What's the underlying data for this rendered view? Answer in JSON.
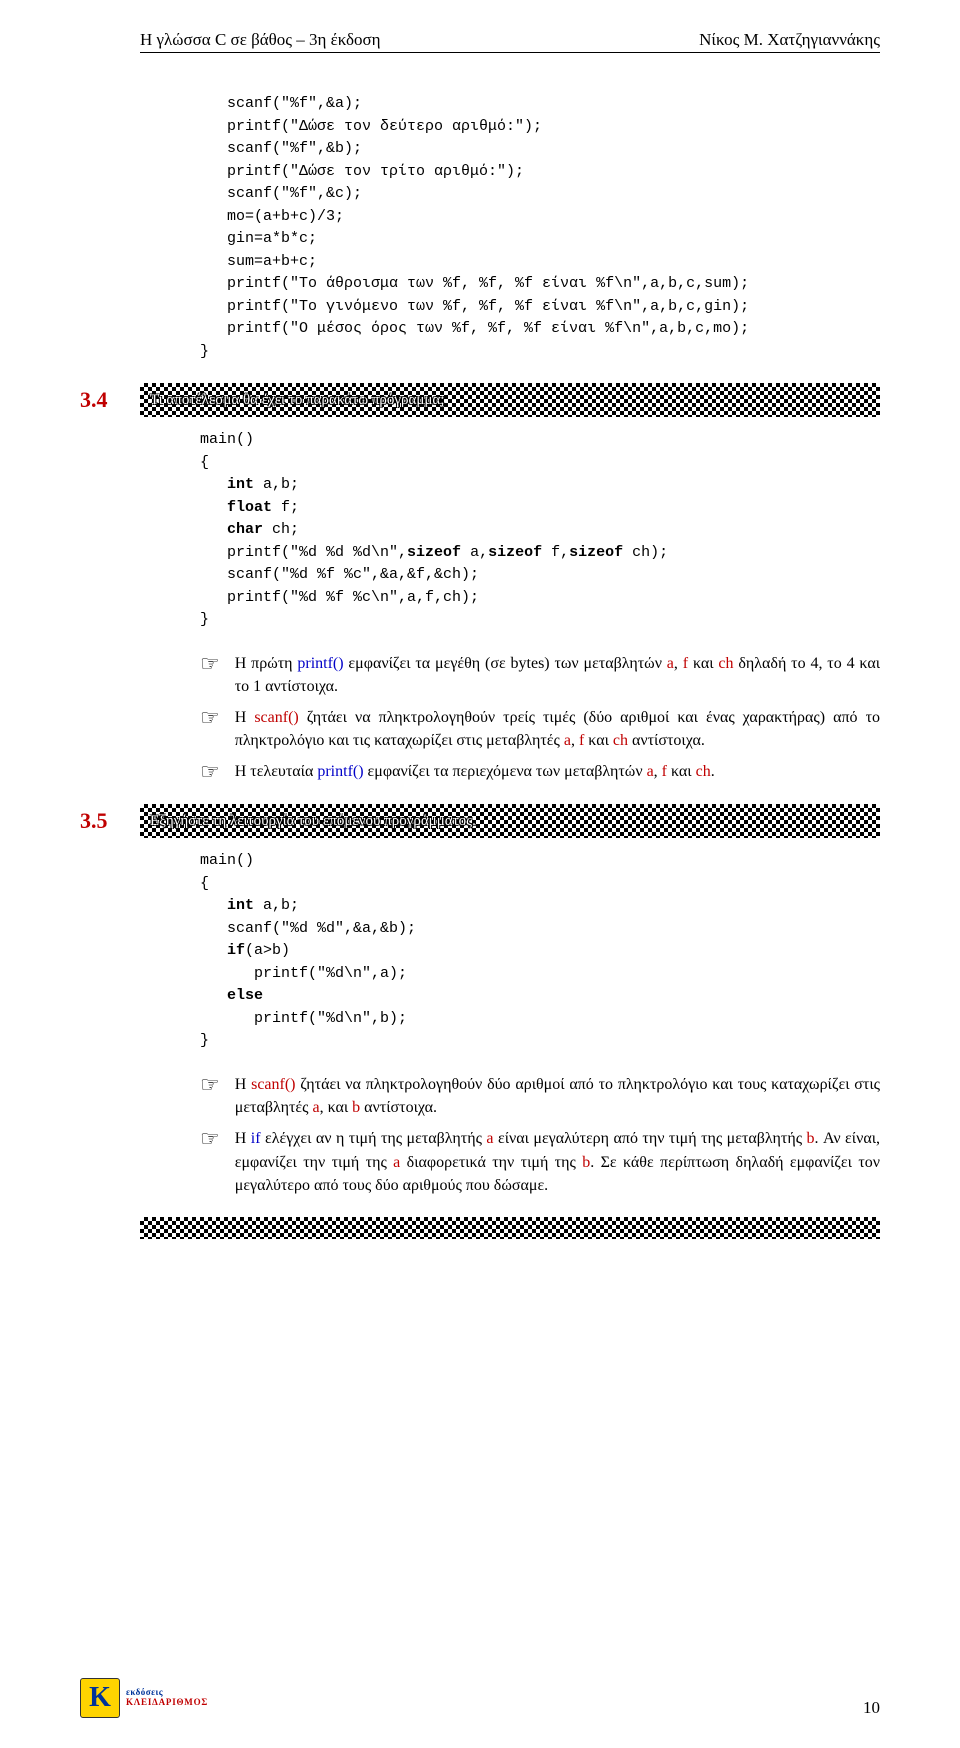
{
  "header": {
    "left": "Η γλώσσα C σε βάθος – 3η έκδοση",
    "right": "Νίκος Μ. Χατζηγιαννάκης"
  },
  "code1": {
    "lines": [
      "scanf(\"%f\",&a);",
      "printf(\"Δώσε τον δεύτερο αριθμό:\");",
      "scanf(\"%f\",&b);",
      "printf(\"Δώσε τον τρίτο αριθμό:\");",
      "scanf(\"%f\",&c);",
      "mo=(a+b+c)/3;",
      "gin=a*b*c;",
      "sum=a+b+c;",
      "printf(\"Το άθροισμα των %f, %f, %f είναι %f\\n\",a,b,c,sum);",
      "printf(\"Το γινόμενο των %f, %f, %f είναι %f\\n\",a,b,c,gin);",
      "printf(\"Ο μέσος όρος των %f, %f, %f είναι %f\\n\",a,b,c,mo);"
    ],
    "close": "}"
  },
  "sec34": {
    "num": "3.4",
    "title": "Τι αποτέλεσμα θα έχει το παρακάτω πρόγραμμα;",
    "code_open": "main()\n{",
    "code_body": [
      {
        "kw": "int",
        "rest": " a,b;"
      },
      {
        "kw": "float",
        "rest": " f;"
      },
      {
        "kw": "char",
        "rest": " ch;"
      }
    ],
    "code_plain": [
      "printf(\"%d %d %d\\n\",",
      "sizeof_a,",
      "sizeof_f,",
      "sizeof_ch);",
      "scanf(\"%d %f %c\",&a,&f,&ch);",
      "printf(\"%d %f %c\\n\",a,f,ch);"
    ],
    "code_close": "}",
    "sizeof_line_prefix": "printf(\"%d %d %d\\n\",",
    "sizeof_kw": "sizeof",
    "sizeof_parts": [
      " a,",
      " f,",
      " ch);"
    ],
    "notes": [
      [
        {
          "t": "Η πρώτη ",
          "c": ""
        },
        {
          "t": "printf()",
          "c": "c-blue"
        },
        {
          "t": " εμφανίζει τα μεγέθη (σε bytes) των μεταβλητών ",
          "c": ""
        },
        {
          "t": "a",
          "c": "c-red"
        },
        {
          "t": ", ",
          "c": ""
        },
        {
          "t": "f",
          "c": "c-red"
        },
        {
          "t": " και ",
          "c": ""
        },
        {
          "t": "ch",
          "c": "c-red"
        },
        {
          "t": " δηλαδή το 4, το 4 και το 1 αντίστοιχα.",
          "c": ""
        }
      ],
      [
        {
          "t": "Η ",
          "c": ""
        },
        {
          "t": "scanf()",
          "c": "c-red"
        },
        {
          "t": " ζητάει να πληκτρολογηθούν τρείς τιμές (δύο αριθμοί και ένας χαρακτήρας) από το πληκτρολόγιο και τις καταχωρίζει στις μεταβλητές ",
          "c": ""
        },
        {
          "t": "a",
          "c": "c-red"
        },
        {
          "t": ", ",
          "c": ""
        },
        {
          "t": "f",
          "c": "c-red"
        },
        {
          "t": " και ",
          "c": ""
        },
        {
          "t": "ch",
          "c": "c-red"
        },
        {
          "t": " αντίστοιχα.",
          "c": ""
        }
      ],
      [
        {
          "t": "Η τελευταία ",
          "c": ""
        },
        {
          "t": "printf()",
          "c": "c-blue"
        },
        {
          "t": " εμφανίζει τα περιεχόμενα των μεταβλητών ",
          "c": ""
        },
        {
          "t": "a",
          "c": "c-red"
        },
        {
          "t": ", ",
          "c": ""
        },
        {
          "t": "f",
          "c": "c-red"
        },
        {
          "t": " και ",
          "c": ""
        },
        {
          "t": "ch",
          "c": "c-red"
        },
        {
          "t": ".",
          "c": ""
        }
      ]
    ]
  },
  "sec35": {
    "num": "3.5",
    "title": "Εξηγήστε τη λειτουργία του επόμενου προγράμματος.",
    "code_open": "main()\n{",
    "code_body": [
      {
        "kw": "int",
        "rest": " a,b;"
      }
    ],
    "code_plain1": "scanf(\"%d %d\",&a,&b);",
    "if_kw": "if",
    "if_rest": "(a>b)",
    "if_body": "   printf(\"%d\\n\",a);",
    "else_kw": "else",
    "else_body": "   printf(\"%d\\n\",b);",
    "code_close": "}",
    "notes": [
      [
        {
          "t": "Η ",
          "c": ""
        },
        {
          "t": "scanf()",
          "c": "c-red"
        },
        {
          "t": " ζητάει να πληκτρολογηθούν δύο αριθμοί από το πληκτρολόγιο και τους καταχωρίζει στις μεταβλητές ",
          "c": ""
        },
        {
          "t": "a",
          "c": "c-red"
        },
        {
          "t": ", και ",
          "c": ""
        },
        {
          "t": "b",
          "c": "c-red"
        },
        {
          "t": " αντίστοιχα.",
          "c": ""
        }
      ],
      [
        {
          "t": "Η ",
          "c": ""
        },
        {
          "t": "if",
          "c": "c-blue"
        },
        {
          "t": " ελέγχει αν η τιμή της μεταβλητής ",
          "c": ""
        },
        {
          "t": "a",
          "c": "c-red"
        },
        {
          "t": " είναι μεγαλύτερη από την τιμή της μεταβλητής ",
          "c": ""
        },
        {
          "t": "b",
          "c": "c-red"
        },
        {
          "t": ". Αν είναι, εμφανίζει την τιμή της ",
          "c": ""
        },
        {
          "t": "a",
          "c": "c-red"
        },
        {
          "t": " διαφορετικά την τιμή της ",
          "c": ""
        },
        {
          "t": "b",
          "c": "c-red"
        },
        {
          "t": ". Σε κάθε περίπτωση δηλαδή εμφανίζει τον μεγαλύτερο από τους δύο αριθμούς που δώσαμε.",
          "c": ""
        }
      ]
    ]
  },
  "footer": {
    "logo_k": "K",
    "logo_line1": "εκδόσεις",
    "logo_line2": "ΚΛΕΙΔΑΡΙΘΜΟΣ",
    "page": "10"
  },
  "hand_glyph": "☞"
}
